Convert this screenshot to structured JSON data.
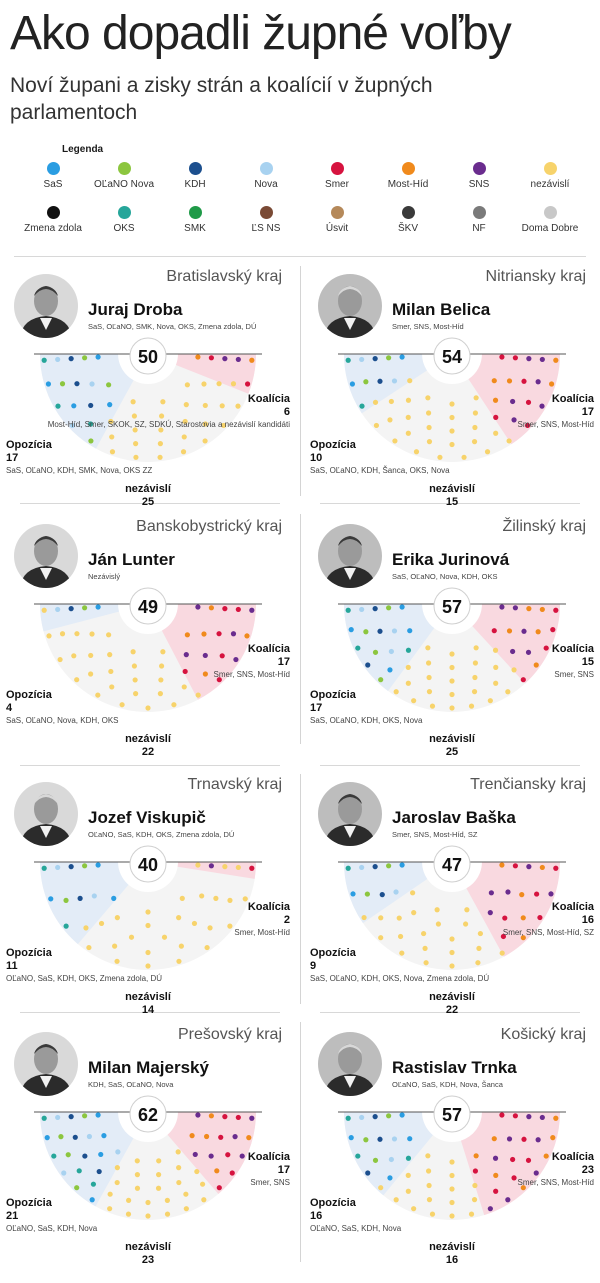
{
  "title": "Ako dopadli župné voľby",
  "subtitle": "Noví župani a zisky strán a koalícií v župných parlamentoch",
  "legend_title": "Legenda",
  "legend": [
    {
      "name": "SaS",
      "color": "#2a9de2"
    },
    {
      "name": "OĽaNO Nova",
      "color": "#8cc63f"
    },
    {
      "name": "KDH",
      "color": "#1c4f8e"
    },
    {
      "name": "Nova",
      "color": "#a8d2f0"
    },
    {
      "name": "Smer",
      "color": "#d6133f"
    },
    {
      "name": "Most-Híd",
      "color": "#f08a1c"
    },
    {
      "name": "SNS",
      "color": "#6a2c8e"
    },
    {
      "name": "nezávislí",
      "color": "#f7d36b"
    },
    {
      "name": "Zmena zdola",
      "color": "#111111"
    },
    {
      "name": "OKS",
      "color": "#26a69a"
    },
    {
      "name": "SMK",
      "color": "#1f9a48"
    },
    {
      "name": "ĽS NS",
      "color": "#7a4a35"
    },
    {
      "name": "Úsvit",
      "color": "#b5895a"
    },
    {
      "name": "ŠKV",
      "color": "#3a3a3a"
    },
    {
      "name": "NF",
      "color": "#7a7a7a"
    },
    {
      "name": "Doma Dobre",
      "color": "#c8c8c8"
    }
  ],
  "opposition_label": "Opozícia",
  "coalition_label": "Koalícia",
  "independent_label": "nezávislí",
  "chart_data": [
    {
      "type": "parliament",
      "region": "Bratislavský kraj",
      "governor": "Juraj Droba",
      "governor_parties": "SaS, OĽaNO, SMK, Nova, OKS, Zmena zdola, DÚ",
      "total": 50,
      "opposition": {
        "count": "17",
        "parties": "SaS, OĽaNO, KDH, SMK, Nova, OKS ZZ",
        "value": 17
      },
      "coalition": {
        "count": "6",
        "parties": "Most-Híd, Smer, SKOK, SZ, SDKÚ, Starostovia a nezávislí kandidáti",
        "value": 6
      },
      "independent": {
        "count": "25",
        "value": 25
      }
    },
    {
      "type": "parliament",
      "region": "Nitriansky kraj",
      "governor": "Milan Belica",
      "governor_parties": "Smer, SNS, Most-Híd",
      "total": 54,
      "opposition": {
        "count": "10",
        "parties": "SaS, OĽaNO, KDH, Šanca, OKS, Nova",
        "value": 10
      },
      "coalition": {
        "count": "17",
        "parties": "Smer, SNS, Most-Híd",
        "value": 17
      },
      "independent": {
        "count": "15",
        "value": 15
      }
    },
    {
      "type": "parliament",
      "region": "Banskobystrický kraj",
      "governor": "Ján Lunter",
      "governor_parties": "Nezávislý",
      "total": 49,
      "opposition": {
        "count": "4",
        "parties": "SaS, OĽaNO, Nova, KDH, OKS",
        "value": 4
      },
      "coalition": {
        "count": "17",
        "parties": "Smer, SNS, Most-Híd",
        "value": 17
      },
      "independent": {
        "count": "22",
        "value": 22
      }
    },
    {
      "type": "parliament",
      "region": "Žilinský kraj",
      "governor": "Erika Jurinová",
      "governor_parties": "SaS, OĽaNO, Nova, KDH, OKS",
      "total": 57,
      "opposition": {
        "count": "17",
        "parties": "SaS, OĽaNO, KDH, OKS, Nova",
        "value": 17
      },
      "coalition": {
        "count": "15",
        "parties": "Smer, SNS",
        "value": 15
      },
      "independent": {
        "count": "25",
        "value": 25
      }
    },
    {
      "type": "parliament",
      "region": "Trnavský kraj",
      "governor": "Jozef Viskupič",
      "governor_parties": "OĽaNO, SaS, KDH, OKS, Zmena zdola, DÚ",
      "total": 40,
      "opposition": {
        "count": "11",
        "parties": "OĽaNO, SaS, KDH, OKS, Zmena zdola, DÚ",
        "value": 11
      },
      "coalition": {
        "count": "2",
        "parties": "Smer, Most-Híd",
        "value": 2
      },
      "independent": {
        "count": "14",
        "value": 14
      }
    },
    {
      "type": "parliament",
      "region": "Trenčiansky kraj",
      "governor": "Jaroslav Baška",
      "governor_parties": "Smer, SNS, Most-Híd, SZ",
      "total": 47,
      "opposition": {
        "count": "9",
        "parties": "SaS, OĽaNO, KDH, OKS, Nova, Zmena zdola, DÚ",
        "value": 9
      },
      "coalition": {
        "count": "16",
        "parties": "Smer, SNS, Most-Híd, SZ",
        "value": 16
      },
      "independent": {
        "count": "22",
        "value": 22
      }
    },
    {
      "type": "parliament",
      "region": "Prešovský kraj",
      "governor": "Milan Majerský",
      "governor_parties": "KDH, SaS, OĽaNO, Nova",
      "total": 62,
      "opposition": {
        "count": "21",
        "parties": "OĽaNO, SaS, KDH, Nova",
        "value": 21
      },
      "coalition": {
        "count": "17",
        "parties": "Smer, SNS",
        "value": 17
      },
      "independent": {
        "count": "23",
        "value": 23
      }
    },
    {
      "type": "parliament",
      "region": "Košický kraj",
      "governor": "Rastislav Trnka",
      "governor_parties": "OĽaNO, SaS, KDH, Nova, Šanca",
      "total": 57,
      "opposition": {
        "count": "16",
        "parties": "OĽaNO, SaS, KDH, Nova",
        "value": 16
      },
      "coalition": {
        "count": "23",
        "parties": "Smer, SNS, Most-Híd",
        "value": 23
      },
      "independent": {
        "count": "16",
        "value": 16
      }
    }
  ]
}
